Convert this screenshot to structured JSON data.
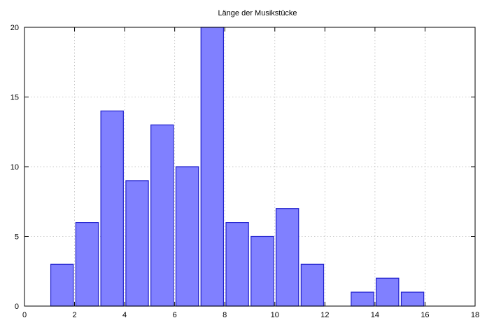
{
  "chart_data": {
    "type": "bar",
    "title": "Länge der Musikstücke",
    "xlabel": "",
    "ylabel": "",
    "xlim": [
      0,
      18
    ],
    "ylim": [
      0,
      20
    ],
    "x_ticks": [
      0,
      2,
      4,
      6,
      8,
      10,
      12,
      14,
      16,
      18
    ],
    "y_ticks": [
      0,
      5,
      10,
      15,
      20
    ],
    "grid": true,
    "bar_width": 0.9,
    "x": [
      1.5,
      2.5,
      3.5,
      4.5,
      5.5,
      6.5,
      7.5,
      8.5,
      9.5,
      10.5,
      11.5,
      13.5,
      14.5,
      15.5
    ],
    "values": [
      3,
      6,
      14,
      9,
      13,
      10,
      20,
      6,
      5,
      7,
      3,
      1,
      2,
      1
    ],
    "colors": {
      "fill": "#8080ff",
      "stroke": "#2020cc"
    }
  }
}
